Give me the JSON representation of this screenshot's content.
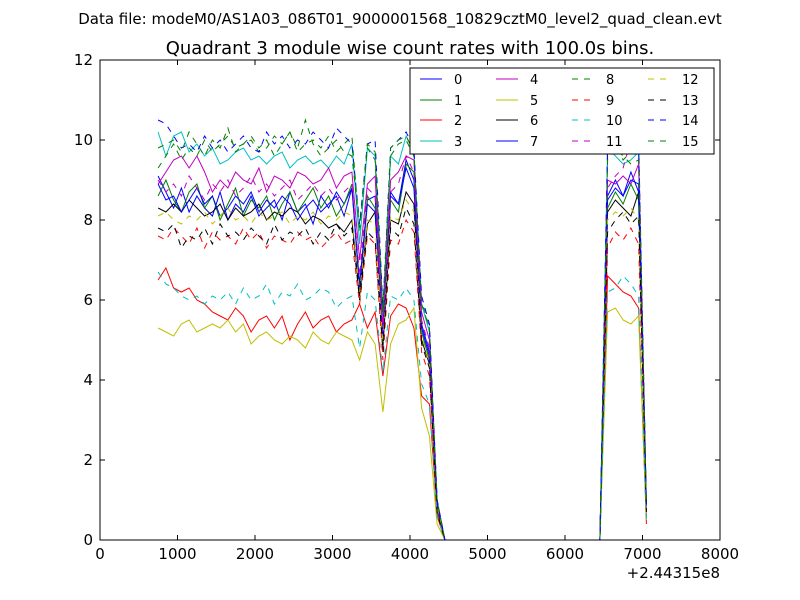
{
  "chart_data": {
    "type": "line",
    "suptitle": "Data file: modeM0/AS1A03_086T01_9000001568_10829cztM0_level2_quad_clean.evt",
    "title": "Quadrant 3 module wise count rates with 100.0s bins.",
    "xlabel": "",
    "ylabel": "",
    "xlim": [
      0,
      8000
    ],
    "ylim": [
      0,
      12
    ],
    "x_offset_label": "+2.44315e8",
    "xticks": [
      0,
      1000,
      2000,
      3000,
      4000,
      5000,
      6000,
      7000,
      8000
    ],
    "yticks": [
      0,
      2,
      4,
      6,
      8,
      10,
      12
    ],
    "grid": false,
    "legend_position": "top-right",
    "x": [
      750,
      850,
      950,
      1050,
      1150,
      1250,
      1350,
      1450,
      1550,
      1650,
      1750,
      1850,
      1950,
      2050,
      2150,
      2250,
      2350,
      2450,
      2550,
      2650,
      2750,
      2850,
      2950,
      3050,
      3150,
      3250,
      3350,
      3450,
      3550,
      3650,
      3750,
      3850,
      3950,
      4050,
      4150,
      4250,
      4350,
      4450,
      4550,
      4650,
      4750,
      4850,
      4950,
      5050,
      5150,
      5250,
      5350,
      5450,
      5550,
      5650,
      5750,
      5850,
      5950,
      6050,
      6150,
      6250,
      6350,
      6450,
      6550,
      6650,
      6750,
      6850,
      6950,
      7050
    ],
    "series": [
      {
        "name": "0",
        "color": "#0000ff",
        "dash": "solid",
        "values": [
          9.1,
          8.7,
          8.3,
          8.8,
          8.2,
          8.6,
          8.3,
          8.1,
          8.7,
          8.0,
          8.4,
          8.2,
          8.6,
          8.1,
          8.3,
          8.5,
          8.0,
          8.7,
          8.2,
          8.4,
          7.9,
          8.6,
          8.3,
          8.7,
          8.4,
          8.8,
          6.4,
          8.5,
          8.6,
          5.0,
          8.7,
          8.4,
          9.5,
          9.0,
          5.4,
          4.7,
          0.9,
          0.0,
          0.0,
          0.0,
          0.0,
          0.0,
          0.0,
          0.0,
          0.0,
          0.0,
          0.0,
          0.0,
          0.0,
          0.0,
          0.0,
          0.0,
          0.0,
          0.0,
          0.0,
          0.0,
          0.0,
          0.0,
          8.6,
          9.0,
          8.6,
          9.2,
          8.7,
          0.8
        ]
      },
      {
        "name": "1",
        "color": "#008000",
        "dash": "solid",
        "values": [
          8.6,
          9.0,
          8.5,
          8.2,
          8.7,
          8.9,
          8.3,
          8.6,
          8.0,
          8.4,
          8.8,
          8.1,
          8.5,
          8.3,
          8.6,
          8.0,
          8.4,
          8.7,
          8.2,
          8.5,
          8.8,
          8.3,
          8.6,
          8.1,
          8.4,
          8.9,
          6.2,
          8.6,
          8.3,
          4.9,
          8.5,
          8.2,
          9.4,
          9.2,
          5.2,
          4.5,
          0.8,
          0.0,
          0.0,
          0.0,
          0.0,
          0.0,
          0.0,
          0.0,
          0.0,
          0.0,
          0.0,
          0.0,
          0.0,
          0.0,
          0.0,
          0.0,
          0.0,
          0.0,
          0.0,
          0.0,
          0.0,
          0.0,
          8.3,
          8.7,
          8.4,
          8.9,
          8.5,
          0.7
        ]
      },
      {
        "name": "2",
        "color": "#ff0000",
        "dash": "solid",
        "values": [
          6.5,
          6.8,
          6.3,
          6.2,
          6.3,
          6.0,
          5.9,
          5.7,
          5.6,
          5.5,
          5.8,
          5.6,
          5.2,
          5.5,
          5.6,
          5.3,
          5.6,
          5.0,
          5.4,
          5.7,
          5.3,
          5.5,
          5.6,
          5.2,
          5.4,
          5.5,
          5.9,
          5.3,
          5.7,
          4.1,
          5.6,
          5.9,
          5.8,
          5.3,
          3.6,
          3.4,
          0.6,
          0.0,
          0.0,
          0.0,
          0.0,
          0.0,
          0.0,
          0.0,
          0.0,
          0.0,
          0.0,
          0.0,
          0.0,
          0.0,
          0.0,
          0.0,
          0.0,
          0.0,
          0.0,
          0.0,
          0.0,
          0.0,
          6.6,
          6.4,
          6.2,
          6.1,
          5.8,
          0.4
        ]
      },
      {
        "name": "3",
        "color": "#00bfbf",
        "dash": "solid",
        "values": [
          10.2,
          9.6,
          10.1,
          10.2,
          9.7,
          9.9,
          9.6,
          9.8,
          9.4,
          9.5,
          9.7,
          9.8,
          9.5,
          9.6,
          9.4,
          9.6,
          9.7,
          9.3,
          9.5,
          9.6,
          9.4,
          9.5,
          9.3,
          9.6,
          9.4,
          9.9,
          7.4,
          9.8,
          9.6,
          5.6,
          9.6,
          9.4,
          10.1,
          9.7,
          5.9,
          5.2,
          1.0,
          0.0,
          0.0,
          0.0,
          0.0,
          0.0,
          0.0,
          0.0,
          0.0,
          0.0,
          0.0,
          0.0,
          0.0,
          0.0,
          0.0,
          0.0,
          0.0,
          0.0,
          0.0,
          0.0,
          0.0,
          0.0,
          9.8,
          9.6,
          9.4,
          9.5,
          9.7,
          0.9
        ]
      },
      {
        "name": "4",
        "color": "#bf00bf",
        "dash": "solid",
        "values": [
          8.9,
          9.2,
          9.5,
          9.6,
          9.3,
          9.6,
          9.2,
          8.7,
          9.0,
          8.8,
          9.2,
          9.0,
          8.9,
          9.3,
          8.7,
          9.1,
          9.0,
          8.8,
          9.2,
          9.1,
          8.9,
          9.0,
          9.3,
          8.8,
          9.1,
          9.2,
          7.0,
          8.9,
          9.1,
          5.3,
          9.0,
          9.2,
          9.6,
          9.5,
          5.7,
          5.0,
          0.9,
          0.0,
          0.0,
          0.0,
          0.0,
          0.0,
          0.0,
          0.0,
          0.0,
          0.0,
          0.0,
          0.0,
          0.0,
          0.0,
          0.0,
          0.0,
          0.0,
          0.0,
          0.0,
          0.0,
          0.0,
          0.0,
          9.0,
          8.9,
          9.1,
          8.9,
          9.4,
          0.8
        ]
      },
      {
        "name": "5",
        "color": "#bfbf00",
        "dash": "solid",
        "values": [
          5.3,
          5.2,
          5.1,
          5.4,
          5.5,
          5.2,
          5.3,
          5.4,
          5.3,
          5.5,
          5.2,
          5.4,
          4.9,
          5.1,
          5.2,
          5.0,
          4.9,
          5.1,
          5.0,
          4.8,
          5.2,
          5.0,
          4.9,
          5.2,
          5.1,
          5.0,
          4.5,
          5.2,
          4.9,
          3.2,
          4.9,
          5.4,
          5.5,
          5.8,
          3.3,
          2.6,
          0.4,
          0.0,
          0.0,
          0.0,
          0.0,
          0.0,
          0.0,
          0.0,
          0.0,
          0.0,
          0.0,
          0.0,
          0.0,
          0.0,
          0.0,
          0.0,
          0.0,
          0.0,
          0.0,
          0.0,
          0.0,
          0.0,
          5.7,
          5.8,
          5.5,
          5.4,
          5.6,
          0.5
        ]
      },
      {
        "name": "6",
        "color": "#000000",
        "dash": "solid",
        "values": [
          8.3,
          8.2,
          8.4,
          8.2,
          8.5,
          8.3,
          8.1,
          8.2,
          8.4,
          8.0,
          8.3,
          8.1,
          8.2,
          8.4,
          8.0,
          8.2,
          8.1,
          8.3,
          8.2,
          7.9,
          8.1,
          8.0,
          7.8,
          7.9,
          7.7,
          8.0,
          6.1,
          7.9,
          8.2,
          4.8,
          8.0,
          7.9,
          8.7,
          8.4,
          5.0,
          4.4,
          0.7,
          0.0,
          0.0,
          0.0,
          0.0,
          0.0,
          0.0,
          0.0,
          0.0,
          0.0,
          0.0,
          0.0,
          0.0,
          0.0,
          0.0,
          0.0,
          0.0,
          0.0,
          0.0,
          0.0,
          0.0,
          0.0,
          8.2,
          8.5,
          8.3,
          8.1,
          8.7,
          0.7
        ]
      },
      {
        "name": "7",
        "color": "#0000ff",
        "dash": "solid",
        "values": [
          8.9,
          8.5,
          8.6,
          8.2,
          8.5,
          8.8,
          8.4,
          8.6,
          8.1,
          8.3,
          8.6,
          8.4,
          8.7,
          8.2,
          8.5,
          8.3,
          8.6,
          8.4,
          8.0,
          8.3,
          8.5,
          8.2,
          8.4,
          8.6,
          8.1,
          8.8,
          6.3,
          8.4,
          8.2,
          5.1,
          8.6,
          8.4,
          9.3,
          8.8,
          5.3,
          4.6,
          0.9,
          0.0,
          0.0,
          0.0,
          0.0,
          0.0,
          0.0,
          0.0,
          0.0,
          0.0,
          0.0,
          0.0,
          0.0,
          0.0,
          0.0,
          0.0,
          0.0,
          0.0,
          0.0,
          0.0,
          0.0,
          0.0,
          8.5,
          8.8,
          8.6,
          9.0,
          8.9,
          0.8
        ]
      },
      {
        "name": "8",
        "color": "#008000",
        "dash": "dashed",
        "values": [
          9.3,
          9.6,
          9.9,
          9.5,
          9.8,
          9.6,
          10.0,
          9.7,
          9.9,
          10.1,
          9.8,
          9.9,
          10.0,
          9.7,
          9.8,
          10.1,
          9.9,
          10.2,
          9.8,
          10.5,
          9.9,
          9.6,
          9.8,
          10.0,
          9.7,
          9.6,
          7.8,
          9.8,
          9.5,
          5.7,
          9.6,
          9.9,
          10.0,
          9.6,
          6.0,
          5.3,
          1.0,
          0.0,
          0.0,
          0.0,
          0.0,
          0.0,
          0.0,
          0.0,
          0.0,
          0.0,
          0.0,
          0.0,
          0.0,
          0.0,
          0.0,
          0.0,
          0.0,
          0.0,
          0.0,
          0.0,
          0.0,
          0.0,
          9.6,
          9.9,
          9.5,
          9.7,
          9.6,
          0.9
        ]
      },
      {
        "name": "9",
        "color": "#ff0000",
        "dash": "dashed",
        "values": [
          7.6,
          7.5,
          7.8,
          7.6,
          7.4,
          7.8,
          7.3,
          7.7,
          7.5,
          7.6,
          7.4,
          7.8,
          7.5,
          7.7,
          7.3,
          7.6,
          7.5,
          7.4,
          7.7,
          7.5,
          7.6,
          7.3,
          7.5,
          7.7,
          7.4,
          7.5,
          5.9,
          7.6,
          7.4,
          4.5,
          7.5,
          7.4,
          8.0,
          7.7,
          4.7,
          4.1,
          0.7,
          0.0,
          0.0,
          0.0,
          0.0,
          0.0,
          0.0,
          0.0,
          0.0,
          0.0,
          0.0,
          0.0,
          0.0,
          0.0,
          0.0,
          0.0,
          0.0,
          0.0,
          0.0,
          0.0,
          0.0,
          0.0,
          7.3,
          7.7,
          7.5,
          7.8,
          7.4,
          0.6
        ]
      },
      {
        "name": "10",
        "color": "#00bfbf",
        "dash": "dashed",
        "values": [
          6.7,
          6.4,
          6.3,
          6.1,
          6.0,
          6.1,
          5.9,
          6.1,
          6.0,
          6.2,
          5.9,
          6.3,
          6.0,
          6.1,
          6.4,
          5.9,
          6.2,
          6.1,
          6.4,
          6.0,
          6.1,
          6.3,
          6.2,
          5.8,
          6.0,
          6.1,
          4.8,
          6.2,
          6.0,
          4.2,
          6.1,
          6.0,
          6.3,
          6.0,
          3.9,
          3.4,
          0.6,
          0.0,
          0.0,
          0.0,
          0.0,
          0.0,
          0.0,
          0.0,
          0.0,
          0.0,
          0.0,
          0.0,
          0.0,
          0.0,
          0.0,
          0.0,
          0.0,
          0.0,
          0.0,
          0.0,
          0.0,
          0.0,
          6.2,
          6.3,
          6.6,
          6.4,
          6.1,
          0.5
        ]
      },
      {
        "name": "11",
        "color": "#bf00bf",
        "dash": "dashed",
        "values": [
          9.0,
          8.7,
          8.9,
          8.6,
          9.1,
          8.8,
          8.5,
          8.9,
          8.7,
          9.0,
          8.6,
          8.8,
          9.1,
          8.7,
          8.9,
          8.6,
          8.8,
          9.0,
          8.5,
          8.7,
          8.9,
          8.6,
          8.8,
          8.5,
          8.7,
          8.9,
          6.6,
          8.8,
          8.6,
          5.2,
          8.7,
          8.9,
          9.6,
          9.2,
          5.5,
          4.8,
          0.9,
          0.0,
          0.0,
          0.0,
          0.0,
          0.0,
          0.0,
          0.0,
          0.0,
          0.0,
          0.0,
          0.0,
          0.0,
          0.0,
          0.0,
          0.0,
          0.0,
          0.0,
          0.0,
          0.0,
          0.0,
          0.0,
          8.8,
          9.1,
          9.3,
          10.0,
          10.1,
          0.8
        ]
      },
      {
        "name": "12",
        "color": "#bfbf00",
        "dash": "dashed",
        "values": [
          8.1,
          8.2,
          8.0,
          7.9,
          8.1,
          8.0,
          8.2,
          7.9,
          8.1,
          8.3,
          8.0,
          8.1,
          7.9,
          8.2,
          8.0,
          8.1,
          8.2,
          7.9,
          8.1,
          8.0,
          8.2,
          7.9,
          8.1,
          8.0,
          8.2,
          8.1,
          6.2,
          8.0,
          7.9,
          4.9,
          8.1,
          8.0,
          8.5,
          8.2,
          5.1,
          4.4,
          0.8,
          0.0,
          0.0,
          0.0,
          0.0,
          0.0,
          0.0,
          0.0,
          0.0,
          0.0,
          0.0,
          0.0,
          0.0,
          0.0,
          0.0,
          0.0,
          0.0,
          0.0,
          0.0,
          0.0,
          0.0,
          0.0,
          8.0,
          8.2,
          8.1,
          8.3,
          8.0,
          0.7
        ]
      },
      {
        "name": "13",
        "color": "#000000",
        "dash": "dashed",
        "values": [
          7.8,
          7.7,
          7.9,
          7.3,
          7.6,
          7.5,
          7.8,
          7.4,
          7.9,
          7.6,
          7.7,
          7.5,
          7.8,
          7.6,
          7.4,
          7.9,
          7.5,
          7.7,
          7.6,
          7.8,
          7.4,
          7.7,
          7.5,
          7.9,
          7.6,
          7.8,
          6.0,
          7.7,
          7.5,
          4.7,
          7.8,
          7.6,
          8.3,
          7.9,
          4.9,
          4.3,
          0.7,
          0.0,
          0.0,
          0.0,
          0.0,
          0.0,
          0.0,
          0.0,
          0.0,
          0.0,
          0.0,
          0.0,
          0.0,
          0.0,
          0.0,
          0.0,
          0.0,
          0.0,
          0.0,
          0.0,
          0.0,
          0.0,
          7.7,
          8.0,
          8.2,
          7.9,
          8.1,
          0.7
        ]
      },
      {
        "name": "14",
        "color": "#0000ff",
        "dash": "dashed",
        "values": [
          10.5,
          10.4,
          10.1,
          9.8,
          9.9,
          9.7,
          10.1,
          9.8,
          10.0,
          9.7,
          9.9,
          10.1,
          9.8,
          9.7,
          10.2,
          9.9,
          10.1,
          9.8,
          10.0,
          9.9,
          10.2,
          10.0,
          9.8,
          10.3,
          10.1,
          9.9,
          7.9,
          9.9,
          10.0,
          5.8,
          9.8,
          10.0,
          10.2,
          9.8,
          6.1,
          5.4,
          1.0,
          0.0,
          0.0,
          0.0,
          0.0,
          0.0,
          0.0,
          0.0,
          0.0,
          0.0,
          0.0,
          0.0,
          0.0,
          0.0,
          0.0,
          0.0,
          0.0,
          0.0,
          0.0,
          0.0,
          0.0,
          0.0,
          9.9,
          10.1,
          9.8,
          9.7,
          9.9,
          0.9
        ]
      },
      {
        "name": "15",
        "color": "#008000",
        "dash": "dashed",
        "values": [
          9.8,
          9.9,
          10.0,
          9.7,
          10.2,
          9.9,
          9.6,
          10.0,
          9.8,
          10.3,
          9.7,
          9.9,
          10.1,
          9.8,
          10.0,
          9.6,
          9.9,
          10.2,
          9.7,
          9.9,
          10.0,
          9.8,
          10.1,
          9.7,
          9.9,
          10.1,
          7.7,
          9.9,
          9.7,
          5.7,
          9.8,
          10.0,
          10.1,
          9.7,
          5.9,
          5.3,
          1.0,
          0.0,
          0.0,
          0.0,
          0.0,
          0.0,
          0.0,
          0.0,
          0.0,
          0.0,
          0.0,
          0.0,
          0.0,
          0.0,
          0.0,
          0.0,
          0.0,
          0.0,
          0.0,
          0.0,
          0.0,
          0.0,
          9.5,
          9.8,
          9.6,
          9.4,
          9.5,
          0.9
        ]
      }
    ]
  }
}
